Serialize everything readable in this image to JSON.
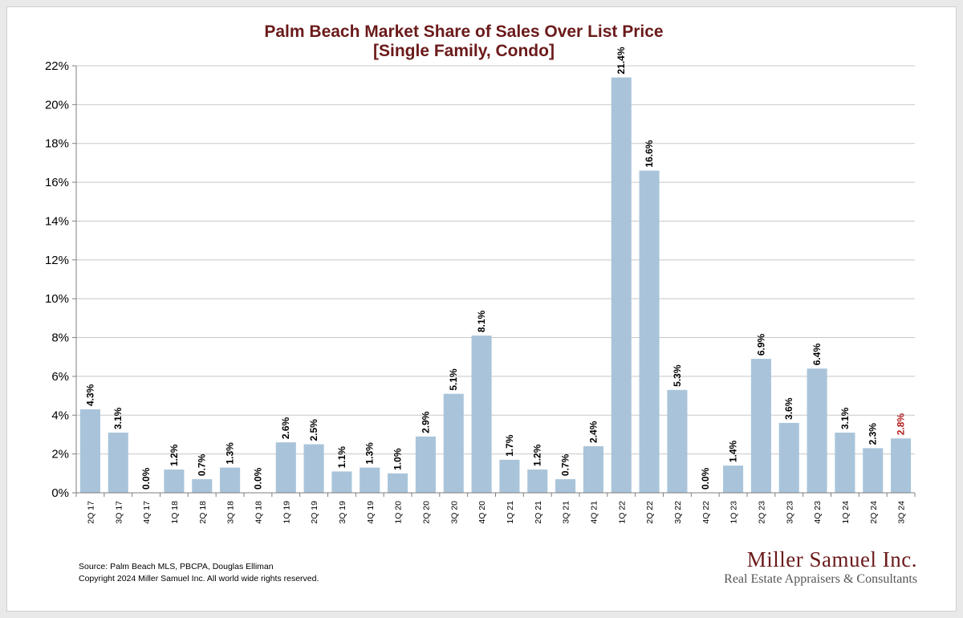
{
  "colors": {
    "title": "#6b1a1a",
    "bar": "#a9c4da",
    "grid": "#c8c8c8",
    "axis": "#7f7f7f",
    "label": "#000000",
    "highlight_label": "#b21d1d",
    "logo": "#6b1a1a"
  },
  "chart_data": {
    "type": "bar",
    "title": "Palm Beach Market Share of Sales Over List Price",
    "subtitle": "[Single Family, Condo]",
    "xlabel": "",
    "ylabel": "",
    "ylim": [
      0,
      22
    ],
    "yticks": [
      0,
      2,
      4,
      6,
      8,
      10,
      12,
      14,
      16,
      18,
      20,
      22
    ],
    "ytick_suffix": "%",
    "grid": true,
    "legend": "none",
    "categories": [
      "2Q 17",
      "3Q 17",
      "4Q 17",
      "1Q 18",
      "2Q 18",
      "3Q 18",
      "4Q 18",
      "1Q 19",
      "2Q 19",
      "3Q 19",
      "4Q 19",
      "1Q 20",
      "2Q 20",
      "3Q 20",
      "4Q 20",
      "1Q 21",
      "2Q 21",
      "3Q 21",
      "4Q 21",
      "1Q 22",
      "2Q 22",
      "3Q 22",
      "4Q 22",
      "1Q 23",
      "2Q 23",
      "3Q 23",
      "4Q 23",
      "1Q 24",
      "2Q 24",
      "3Q 24"
    ],
    "values": [
      4.3,
      3.1,
      0.0,
      1.2,
      0.7,
      1.3,
      0.0,
      2.6,
      2.5,
      1.1,
      1.3,
      1.0,
      2.9,
      5.1,
      8.1,
      1.7,
      1.2,
      0.7,
      2.4,
      21.4,
      16.6,
      5.3,
      0.0,
      1.4,
      6.9,
      3.6,
      6.4,
      3.1,
      2.3,
      2.8
    ],
    "data_labels": [
      "4.3%",
      "3.1%",
      "0.0%",
      "1.2%",
      "0.7%",
      "1.3%",
      "0.0%",
      "2.6%",
      "2.5%",
      "1.1%",
      "1.3%",
      "1.0%",
      "2.9%",
      "5.1%",
      "8.1%",
      "1.7%",
      "1.2%",
      "0.7%",
      "2.4%",
      "21.4%",
      "16.6%",
      "5.3%",
      "0.0%",
      "1.4%",
      "6.9%",
      "3.6%",
      "6.4%",
      "3.1%",
      "2.3%",
      "2.8%"
    ],
    "highlight_last_label": true
  },
  "footer": {
    "source": "Source: Palm Beach MLS, PBCPA, Douglas Elliman",
    "copyright": "Copyright 2024 Miller Samuel Inc.  All world wide rights reserved."
  },
  "logo": {
    "name": "Miller Samuel Inc.",
    "tagline": "Real Estate Appraisers & Consultants"
  }
}
